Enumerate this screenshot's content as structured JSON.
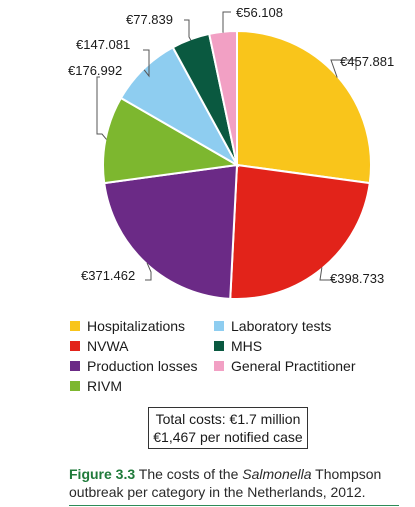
{
  "chart_data": {
    "type": "pie",
    "categories": [
      "Hospitalizations",
      "NVWA",
      "Production losses",
      "RIVM",
      "Laboratory tests",
      "MHS",
      "General Practitioner"
    ],
    "values": [
      457881,
      398733,
      371462,
      176992,
      147081,
      77839,
      56108
    ],
    "value_labels": [
      "€457.881",
      "€398.733",
      "€371.462",
      "€176.992",
      "€147.081",
      "€77.839",
      "€56.108"
    ],
    "colors": [
      "#f9c51b",
      "#e2231a",
      "#6b2a86",
      "#7db72f",
      "#8ecdf0",
      "#0a5940",
      "#f2a0c4"
    ],
    "start": "12 o'clock",
    "direction": "clockwise",
    "legend_placement": "bottom"
  },
  "legend": {
    "items": [
      {
        "label": "Hospitalizations",
        "color": "#f9c51b"
      },
      {
        "label": "Laboratory tests",
        "color": "#8ecdf0"
      },
      {
        "label": "NVWA",
        "color": "#e2231a"
      },
      {
        "label": "MHS",
        "color": "#0a5940"
      },
      {
        "label": "Production losses",
        "color": "#6b2a86"
      },
      {
        "label": "General Practitioner",
        "color": "#f2a0c4"
      },
      {
        "label": "RIVM",
        "color": "#7db72f"
      }
    ]
  },
  "totals": {
    "line1": "Total costs: €1.7 million",
    "line2": "€1,467 per notified case"
  },
  "caption": {
    "figure_label": "Figure 3.3",
    "text_before": " The costs of the ",
    "italic": "Salmonella",
    "text_after": " Thompson outbreak per category in the Netherlands, 2012."
  }
}
